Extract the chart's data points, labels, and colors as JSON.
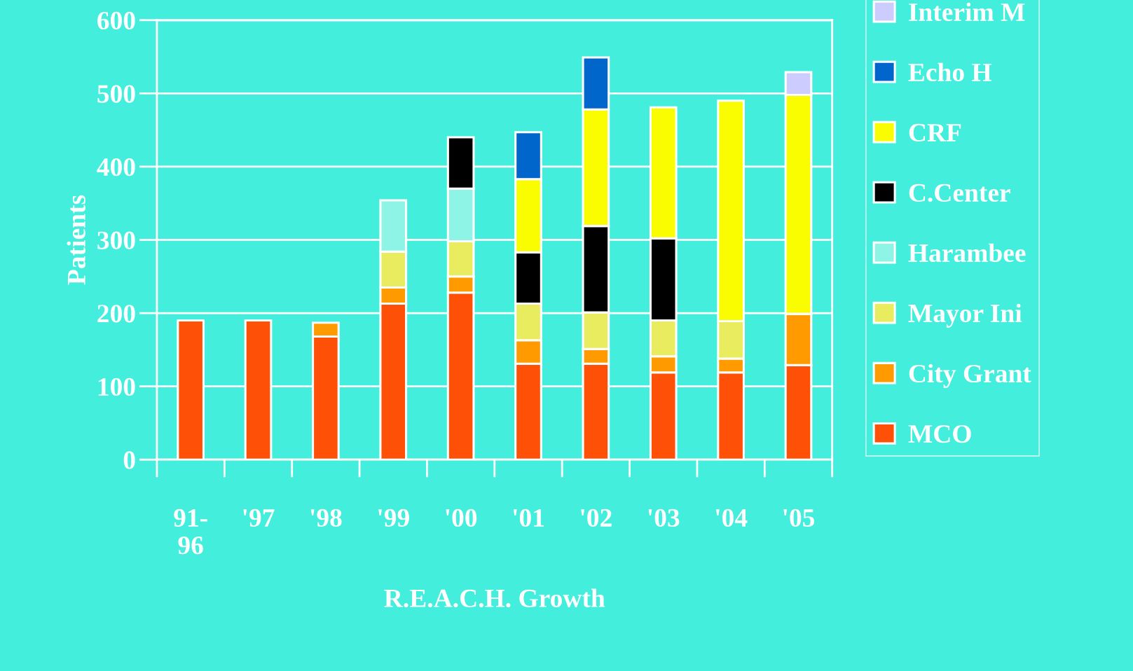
{
  "chart_data": {
    "type": "bar",
    "stacked": true,
    "xlabel": "R.E.A.C.H. Growth",
    "ylabel": "Patients",
    "categories": [
      "91-\n96",
      "'97",
      "'98",
      "'99",
      "'00",
      "'01",
      "'02",
      "'03",
      "'04",
      "'05"
    ],
    "series": [
      {
        "name": "MCO",
        "color": "#ff5008",
        "values": [
          190,
          190,
          168,
          213,
          228,
          131,
          131,
          119,
          119,
          129
        ]
      },
      {
        "name": "City Grant",
        "color": "#ff9a00",
        "values": [
          null,
          null,
          19,
          22,
          22,
          32,
          20,
          22,
          19,
          70
        ]
      },
      {
        "name": "Mayor Ini",
        "color": "#e8ec5e",
        "values": [
          null,
          null,
          null,
          49,
          48,
          50,
          50,
          49,
          51,
          null
        ]
      },
      {
        "name": "Harambee",
        "color": "#8ef4e6",
        "values": [
          null,
          null,
          null,
          70,
          72,
          null,
          null,
          null,
          null,
          null
        ]
      },
      {
        "name": "C.Center",
        "color": "#000000",
        "values": [
          null,
          null,
          null,
          null,
          70,
          70,
          118,
          112,
          null,
          null
        ]
      },
      {
        "name": "CRF",
        "color": "#fafc00",
        "values": [
          null,
          null,
          null,
          null,
          null,
          100,
          159,
          179,
          301,
          299
        ]
      },
      {
        "name": "Echo H",
        "color": "#0066cc",
        "values": [
          null,
          null,
          null,
          null,
          null,
          64,
          71,
          null,
          null,
          null
        ]
      },
      {
        "name": "Interim M",
        "color": "#ccccff",
        "values": [
          null,
          null,
          null,
          null,
          null,
          null,
          null,
          null,
          null,
          31
        ]
      }
    ],
    "ylim": [
      0,
      600
    ],
    "yticks": [
      0,
      100,
      200,
      300,
      400,
      500,
      600
    ],
    "grid": "y",
    "legend": "right"
  }
}
